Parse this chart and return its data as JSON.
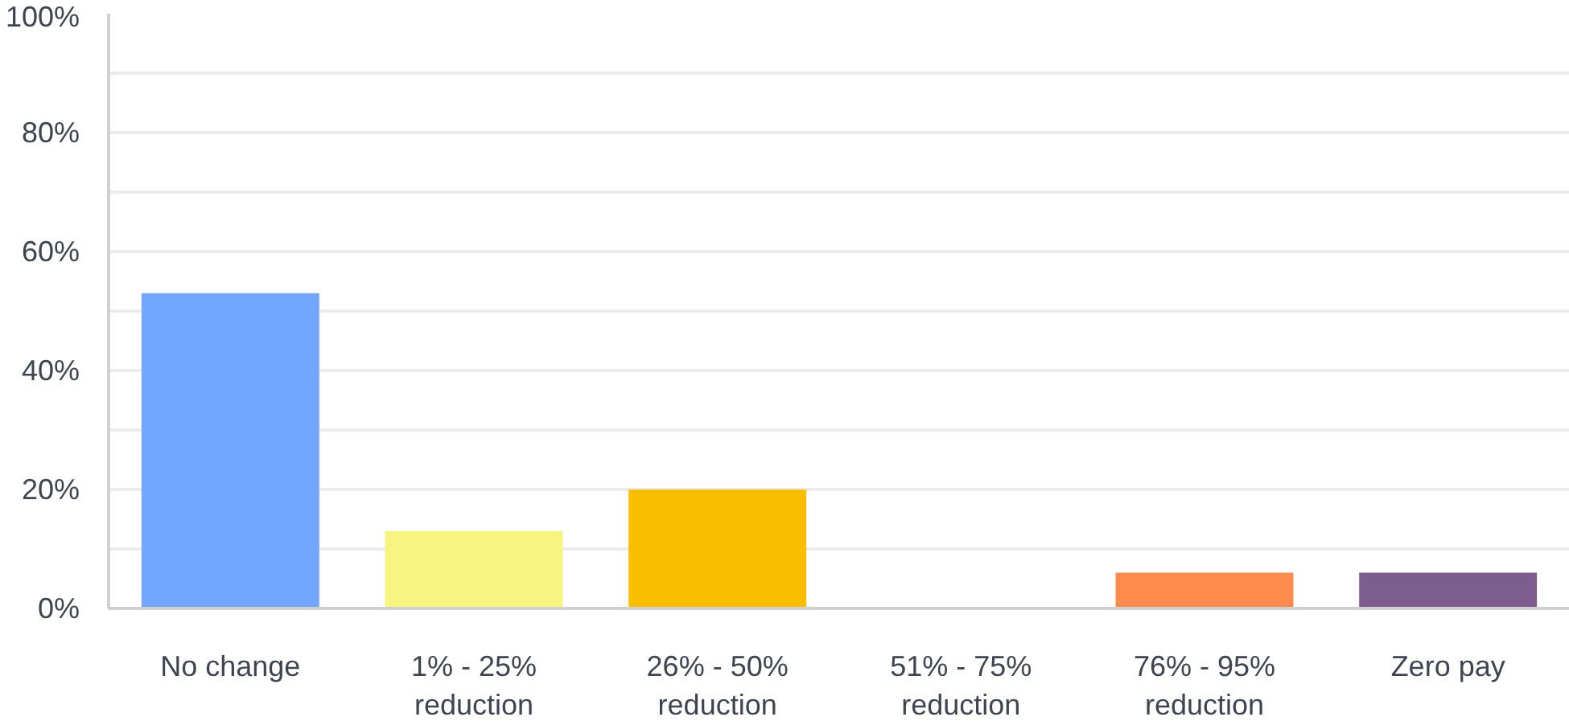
{
  "chart_data": {
    "type": "bar",
    "categories": [
      "No change",
      "1% - 25% reduction",
      "26% - 50% reduction",
      "51% - 75% reduction",
      "76% - 95% reduction",
      "Zero pay"
    ],
    "values": [
      53,
      13,
      20,
      0,
      6,
      6
    ],
    "colors": [
      "#73a6ff",
      "#f7f47f",
      "#f9be00",
      "#f09a5a",
      "#ff8b4f",
      "#7c5d8d"
    ],
    "ylim": [
      0,
      100
    ],
    "yticks": [
      {
        "value": 0,
        "label": "0%"
      },
      {
        "value": 10,
        "label": null
      },
      {
        "value": 20,
        "label": "20%"
      },
      {
        "value": 30,
        "label": null
      },
      {
        "value": 40,
        "label": "40%"
      },
      {
        "value": 50,
        "label": null
      },
      {
        "value": 60,
        "label": "60%"
      },
      {
        "value": 70,
        "label": null
      },
      {
        "value": 80,
        "label": "80%"
      },
      {
        "value": 90,
        "label": null
      },
      {
        "value": 100,
        "label": "100%"
      }
    ],
    "grid": "y"
  }
}
